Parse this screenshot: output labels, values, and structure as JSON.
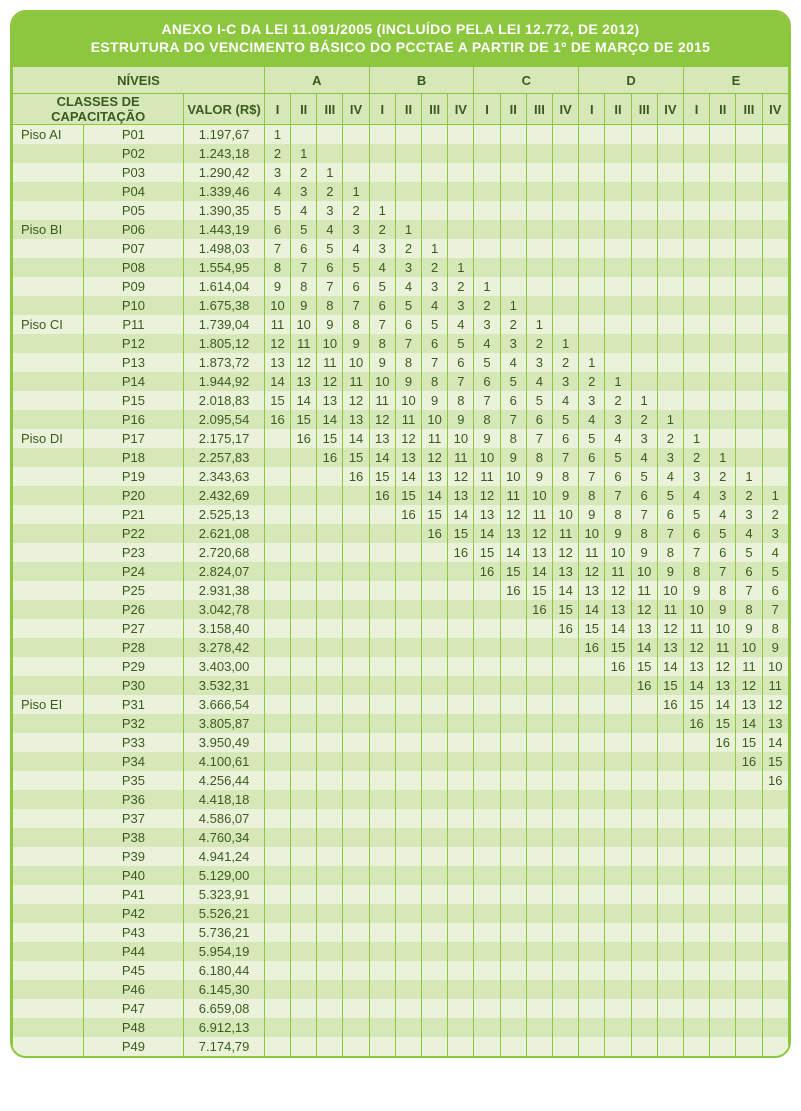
{
  "title_line1": "ANEXO I-C DA LEI 11.091/2005 (INCLUÍDO PELA LEI 12.772, DE 2012)",
  "title_line2": "ESTRUTURA DO VENCIMENTO BÁSICO DO PCCTAE A PARTIR DE 1º DE MARÇO DE 2015",
  "headers": {
    "niveis": "NÍVEIS",
    "classes": "CLASSES DE CAPACITAÇÃO",
    "valor": "VALOR (R$)",
    "groups": [
      "A",
      "B",
      "C",
      "D",
      "E"
    ],
    "subs": [
      "I",
      "II",
      "III",
      "IV"
    ]
  },
  "piso_labels": {
    "0": "Piso AI",
    "5": "Piso BI",
    "10": "Piso CI",
    "16": "Piso DI",
    "30": "Piso EI"
  },
  "rows": [
    {
      "p": "P01",
      "v": "1.197,67",
      "start": 0
    },
    {
      "p": "P02",
      "v": "1.243,18",
      "start": 0
    },
    {
      "p": "P03",
      "v": "1.290,42",
      "start": 0
    },
    {
      "p": "P04",
      "v": "1.339,46",
      "start": 0
    },
    {
      "p": "P05",
      "v": "1.390,35",
      "start": 0
    },
    {
      "p": "P06",
      "v": "1.443,19",
      "start": 0
    },
    {
      "p": "P07",
      "v": "1.498,03",
      "start": 0
    },
    {
      "p": "P08",
      "v": "1.554,95",
      "start": 0
    },
    {
      "p": "P09",
      "v": "1.614,04",
      "start": 0
    },
    {
      "p": "P10",
      "v": "1.675,38",
      "start": 0
    },
    {
      "p": "P11",
      "v": "1.739,04",
      "start": 0
    },
    {
      "p": "P12",
      "v": "1.805,12",
      "start": 0
    },
    {
      "p": "P13",
      "v": "1.873,72",
      "start": 0
    },
    {
      "p": "P14",
      "v": "1.944,92",
      "start": 0
    },
    {
      "p": "P15",
      "v": "2.018,83",
      "start": 0
    },
    {
      "p": "P16",
      "v": "2.095,54",
      "start": 0
    },
    {
      "p": "P17",
      "v": "2.175,17",
      "start": 1
    },
    {
      "p": "P18",
      "v": "2.257,83",
      "start": 2
    },
    {
      "p": "P19",
      "v": "2.343,63",
      "start": 3
    },
    {
      "p": "P20",
      "v": "2.432,69",
      "start": 4
    },
    {
      "p": "P21",
      "v": "2.525,13",
      "start": 5
    },
    {
      "p": "P22",
      "v": "2.621,08",
      "start": 6
    },
    {
      "p": "P23",
      "v": "2.720,68",
      "start": 7
    },
    {
      "p": "P24",
      "v": "2.824,07",
      "start": 8
    },
    {
      "p": "P25",
      "v": "2.931,38",
      "start": 9
    },
    {
      "p": "P26",
      "v": "3.042,78",
      "start": 10
    },
    {
      "p": "P27",
      "v": "3.158,40",
      "start": 11
    },
    {
      "p": "P28",
      "v": "3.278,42",
      "start": 12
    },
    {
      "p": "P29",
      "v": "3.403,00",
      "start": 13
    },
    {
      "p": "P30",
      "v": "3.532,31",
      "start": 14
    },
    {
      "p": "P31",
      "v": "3.666,54",
      "start": 15
    },
    {
      "p": "P32",
      "v": "3.805,87",
      "start": 16
    },
    {
      "p": "P33",
      "v": "3.950,49",
      "start": 17
    },
    {
      "p": "P34",
      "v": "4.100,61",
      "start": 18
    },
    {
      "p": "P35",
      "v": "4.256,44",
      "start": 19
    },
    {
      "p": "P36",
      "v": "4.418,18",
      "start": 20
    },
    {
      "p": "P37",
      "v": "4.586,07",
      "start": 21
    },
    {
      "p": "P38",
      "v": "4.760,34",
      "start": 22
    },
    {
      "p": "P39",
      "v": "4.941,24",
      "start": 23
    },
    {
      "p": "P40",
      "v": "5.129,00",
      "start": 24
    },
    {
      "p": "P41",
      "v": "5.323,91",
      "start": 25
    },
    {
      "p": "P42",
      "v": "5.526,21",
      "start": 26
    },
    {
      "p": "P43",
      "v": "5.736,21",
      "start": 27
    },
    {
      "p": "P44",
      "v": "5.954,19",
      "start": 28
    },
    {
      "p": "P45",
      "v": "6.180,44",
      "start": 29
    },
    {
      "p": "P46",
      "v": "6.145,30",
      "start": 30
    },
    {
      "p": "P47",
      "v": "6.659,08",
      "start": 31
    },
    {
      "p": "P48",
      "v": "6.912,13",
      "start": 32
    },
    {
      "p": "P49",
      "v": "7.174,79",
      "start": 33
    }
  ],
  "style": {
    "numcols": 20,
    "diag_len": 16,
    "clamp": [
      0,
      19
    ],
    "colors": {
      "border": "#8dc63f",
      "bg_light": "#eaf3da",
      "bg_dark": "#d6e8b7",
      "text": "#3b5b1e",
      "title_bg": "#8dc63f",
      "title_text": "#ffffff"
    }
  }
}
